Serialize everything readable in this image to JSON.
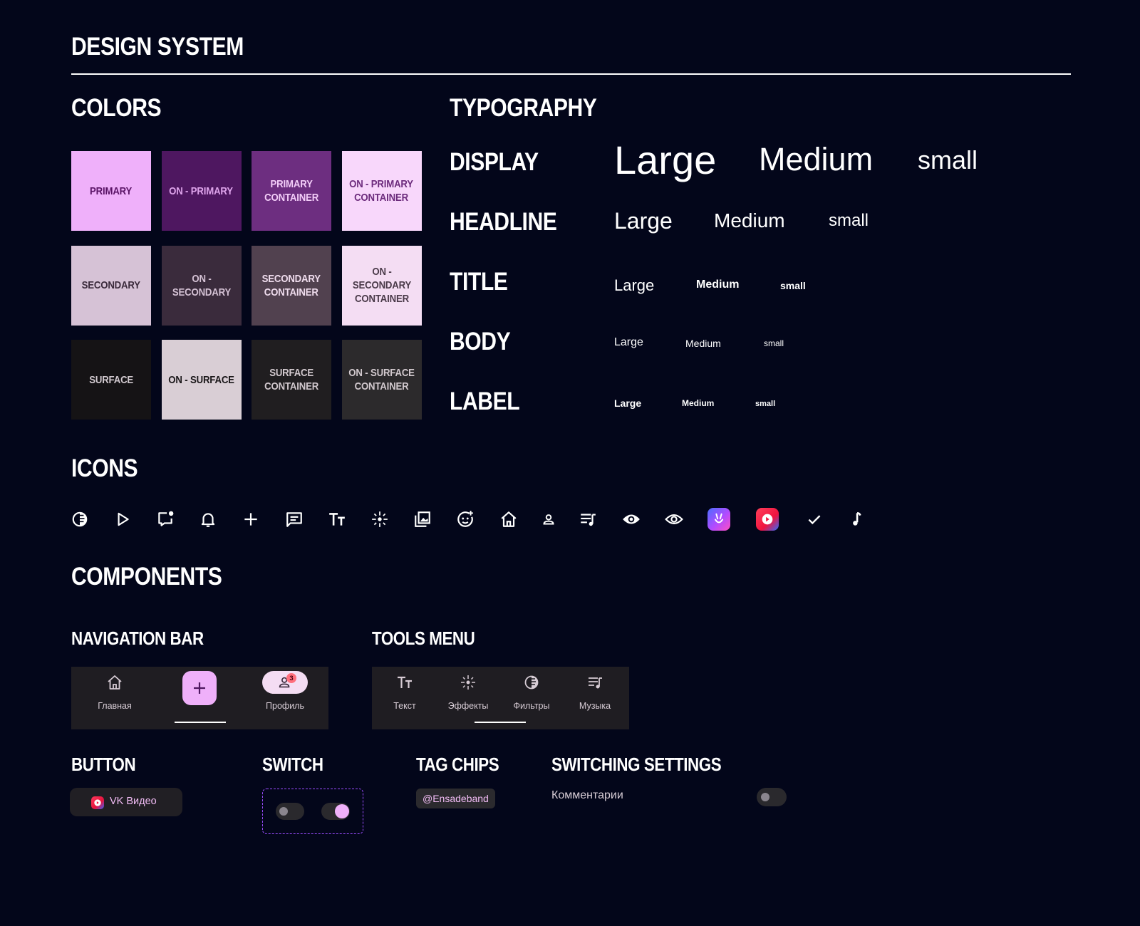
{
  "page_title": "DESIGN SYSTEM",
  "sections": {
    "colors": "COLORS",
    "typography": "TYPOGRAPHY",
    "icons": "ICONS",
    "components": "COMPONENTS"
  },
  "colors": [
    {
      "label": "PRIMARY",
      "bg": "#EFB0FA",
      "fg": "#5A1466"
    },
    {
      "label": "ON - PRIMARY",
      "bg": "#4E1760",
      "fg": "#DEA4EB"
    },
    {
      "label": "PRIMARY\nCONTAINER",
      "bg": "#6D2E80",
      "fg": "#F3CDF8"
    },
    {
      "label": "ON - PRIMARY\nCONTAINER",
      "bg": "#F8D7FB",
      "fg": "#6C2B7C"
    },
    {
      "label": "SECONDARY",
      "bg": "#D6C2D6",
      "fg": "#3B2B3C"
    },
    {
      "label": "ON - SECONDARY",
      "bg": "#3A2B3C",
      "fg": "#D5C2D5"
    },
    {
      "label": "SECONDARY\nCONTAINER",
      "bg": "#51414F",
      "fg": "#F0DDEE"
    },
    {
      "label": "ON - SECONDARY\nCONTAINER",
      "bg": "#F4DDF3",
      "fg": "#4A3A49"
    },
    {
      "label": "SURFACE",
      "bg": "#151315",
      "fg": "#D0C8CE"
    },
    {
      "label": "ON - SURFACE",
      "bg": "#D9CED5",
      "fg": "#1A1719"
    },
    {
      "label": "SURFACE\nCONTAINER",
      "bg": "#201E20",
      "fg": "#D2C9CE"
    },
    {
      "label": "ON - SURFACE\nCONTAINER",
      "bg": "#2C2A2C",
      "fg": "#D2C9CE"
    }
  ],
  "typography": [
    {
      "label": "DISPLAY",
      "large": "Large",
      "medium": "Medium",
      "small": "small"
    },
    {
      "label": "HEADLINE",
      "large": "Large",
      "medium": "Medium",
      "small": "small"
    },
    {
      "label": "TITLE",
      "large": "Large",
      "medium": "Medium",
      "small": "small"
    },
    {
      "label": "BODY",
      "large": "Large",
      "medium": "Medium",
      "small": "small"
    },
    {
      "label": "LABEL",
      "large": "Large",
      "medium": "Medium",
      "small": "small"
    }
  ],
  "icons": [
    "contrast-icon",
    "play-icon",
    "chat-notification-icon",
    "bell-icon",
    "plus-icon",
    "message-icon",
    "text-size-icon",
    "sparkle-icon",
    "gallery-icon",
    "face-plus-icon",
    "home-icon",
    "person-icon",
    "playlist-icon",
    "eye-filled-icon",
    "eye-outline-icon",
    "vk-clips-icon",
    "vk-video-icon",
    "check-icon",
    "music-note-icon"
  ],
  "components": {
    "nav_bar": {
      "title": "NAVIGATION BAR",
      "home_label": "Главная",
      "profile_label": "Профиль",
      "badge": "3"
    },
    "tools_menu": {
      "title": "TOOLS MENU",
      "items": [
        "Текст",
        "Эффекты",
        "Фильтры",
        "Музыка"
      ]
    },
    "button": {
      "title": "BUTTON",
      "label": "VK Видео"
    },
    "switch": {
      "title": "SWITCH"
    },
    "tag_chips": {
      "title": "TAG CHIPS",
      "chip": "@Ensadeband"
    },
    "switching_settings": {
      "title": "SWITCHING SETTINGS",
      "label": "Комментарии"
    }
  },
  "accent_colors": {
    "primary": "#EFB0FA",
    "background": "#03061A",
    "dashed_border": "#9B4DFF"
  }
}
